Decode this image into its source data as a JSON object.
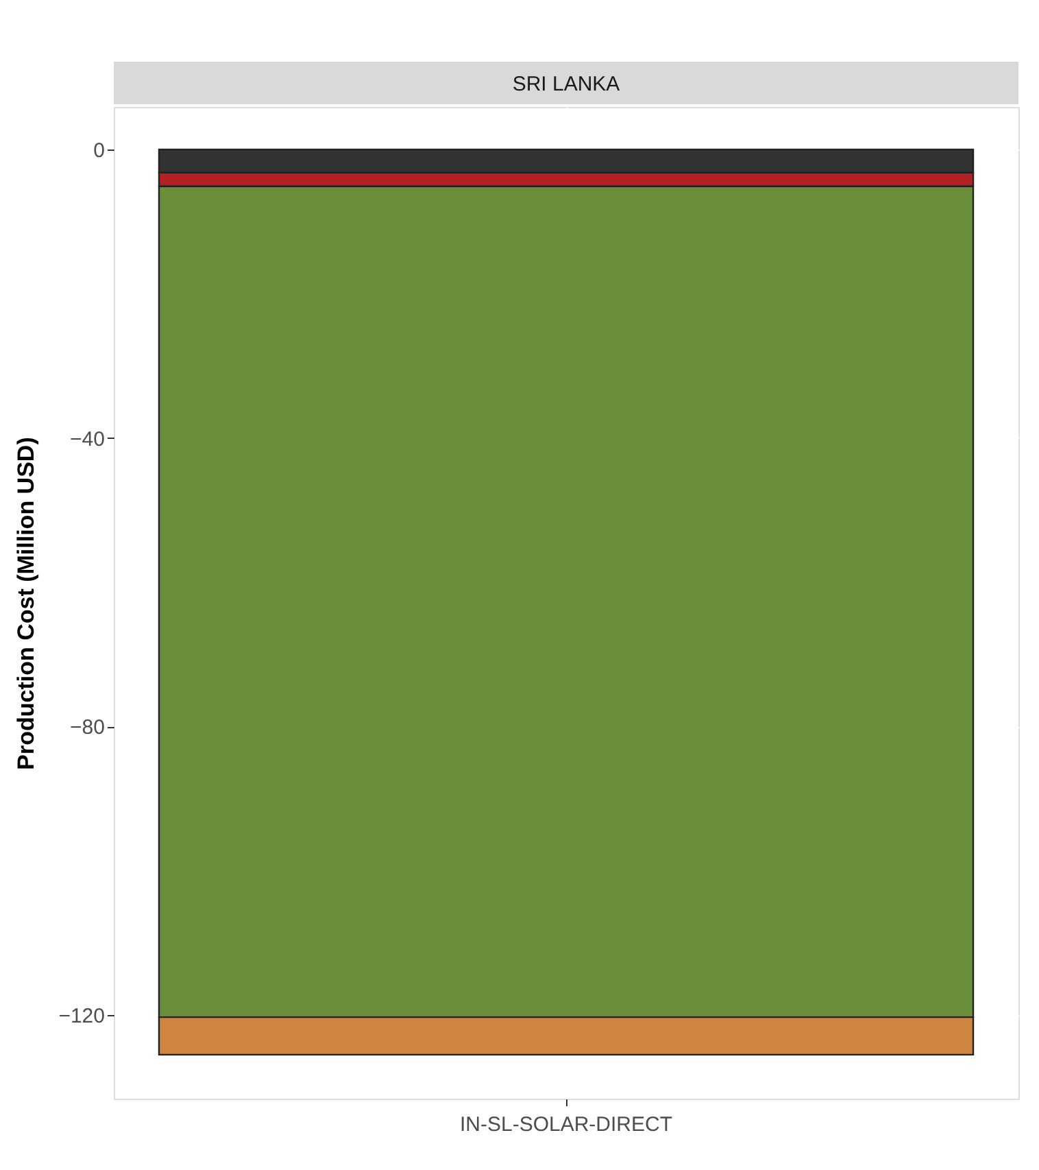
{
  "chart_data": {
    "type": "bar",
    "stacked": true,
    "title": "SRI LANKA",
    "ylabel": "Production Cost (Million USD)",
    "categories": [
      "IN-SL-SOLAR-DIRECT"
    ],
    "series": [
      {
        "color": "#333333",
        "values": [
          -3.2
        ]
      },
      {
        "color": "#b22222",
        "values": [
          -1.9
        ]
      },
      {
        "color": "#6b8e3a",
        "values": [
          -115.2
        ]
      },
      {
        "color": "#cd853f",
        "values": [
          -5.2
        ]
      }
    ],
    "ylim": [
      -131.6,
      5.9
    ],
    "yticks": [
      0,
      -40,
      -80,
      -120
    ],
    "grid": true,
    "legend": false
  }
}
